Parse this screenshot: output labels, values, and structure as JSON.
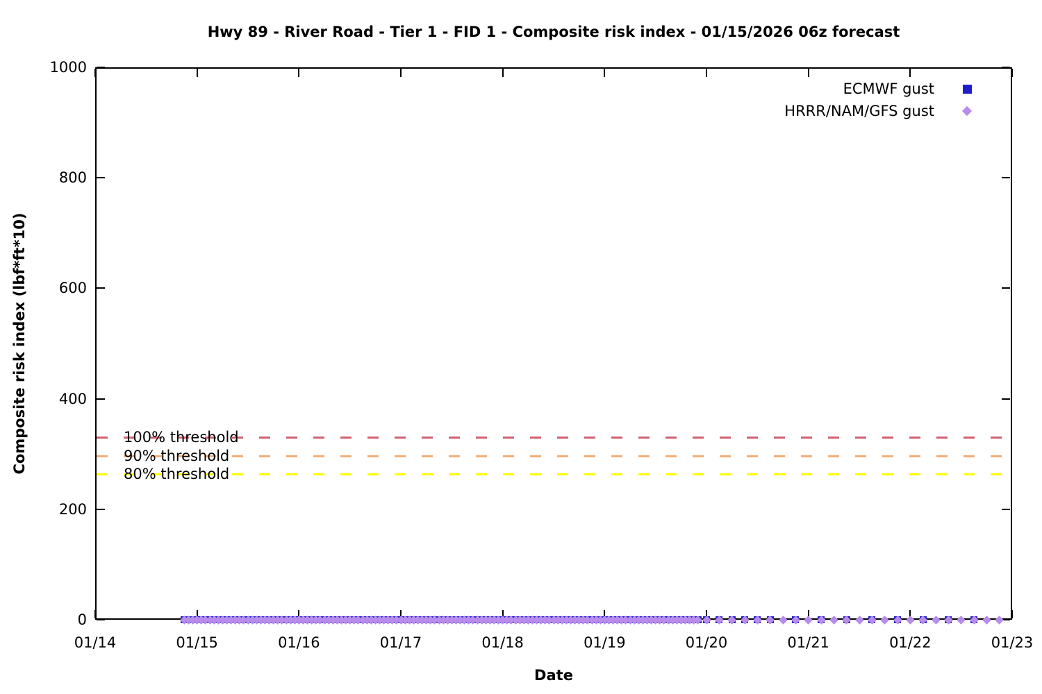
{
  "chart_data": {
    "type": "scatter",
    "title": "Hwy 89 - River Road - Tier 1 - FID 1 - Composite risk index - 01/15/2026 06z forecast",
    "xlabel": "Date",
    "ylabel": "Composite risk index (lbf*ft*10)",
    "x_tick_labels": [
      "01/14",
      "01/15",
      "01/16",
      "01/17",
      "01/18",
      "01/19",
      "01/20",
      "01/21",
      "01/22",
      "01/23"
    ],
    "xlim_days_from_0114": [
      0,
      9
    ],
    "y_ticks": [
      0,
      200,
      400,
      600,
      800,
      1000
    ],
    "ylim": [
      0,
      1000
    ],
    "grid": false,
    "legend_position": "inside top-right",
    "legend": [
      {
        "label": "ECMWF gust",
        "marker": "square",
        "color": "#1e1ecd"
      },
      {
        "label": "HRRR/NAM/GFS gust",
        "marker": "diamond",
        "color": "#b78ceb"
      }
    ],
    "thresholds": [
      {
        "label": "100% threshold",
        "value": 330,
        "color": "#d1606f",
        "style": "dashed"
      },
      {
        "label": "90% threshold",
        "value": 297,
        "color": "#f5ae76",
        "style": "dashed"
      },
      {
        "label": "80% threshold",
        "value": 264,
        "color": "#ffff00",
        "style": "dashed"
      }
    ],
    "series": [
      {
        "name": "ECMWF gust",
        "marker": "square",
        "color": "#1e1ecd",
        "value": 0,
        "segments": [
          {
            "start_day": 0.875,
            "end_day": 5.958,
            "interval_hours": 1
          },
          {
            "start_day": 6.0,
            "end_day": 6.625,
            "interval_hours": 3
          },
          {
            "start_day": 6.875,
            "end_day": 8.625,
            "interval_hours": 6
          }
        ]
      },
      {
        "name": "HRRR/NAM/GFS gust",
        "marker": "diamond",
        "color": "#b78ceb",
        "value": 0,
        "segments": [
          {
            "start_day": 0.875,
            "end_day": 5.958,
            "interval_hours": 1
          },
          {
            "start_day": 6.0,
            "end_day": 8.875,
            "interval_hours": 3
          }
        ]
      }
    ]
  }
}
